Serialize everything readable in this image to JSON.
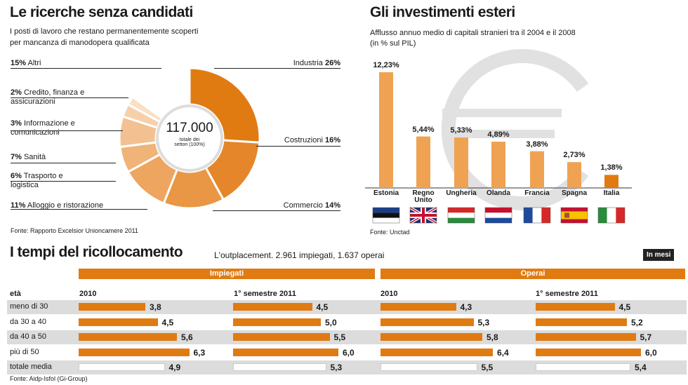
{
  "left_panel": {
    "title": "Le ricerche senza candidati",
    "subtitle_1": "I posti di lavoro che restano permanentemente scoperti",
    "subtitle_2": "per mancanza di manodopera qualificata",
    "center_value": "117.000",
    "center_caption_1": "totale dei",
    "center_caption_2": "settori (100%)",
    "source": "Fonte: Rapporto Excelsior Unioncamere 2011"
  },
  "right_panel": {
    "title": "Gli investimenti esteri",
    "subtitle_1": "Afflusso annuo medio di capitali stranieri tra il 2004 e il 2008",
    "subtitle_2": "(in % sul PIL)",
    "source": "Fonte: Unctad"
  },
  "bottom_panel": {
    "title": "I tempi del ricollocamento",
    "subtitle": "L'outplacement. 2.961 impiegati, 1.637 operai",
    "unit_badge": "In mesi",
    "group_1": "Impiegati",
    "group_2": "Operai",
    "age_header": "età",
    "col_headers": [
      "2010",
      "1° semestre 2011",
      "2010",
      "1° semestre 2011"
    ],
    "source": "Fonte: Aidp-Isfol (Gi-Group)"
  },
  "chart_data": [
    {
      "type": "pie",
      "title": "Le ricerche senza candidati",
      "total": "117.000",
      "slices": [
        {
          "label": "Industria",
          "pct_label": "26%",
          "value": 26,
          "color": "#e07b12"
        },
        {
          "label": "Costruzioni",
          "pct_label": "16%",
          "value": 16,
          "color": "#e5862a"
        },
        {
          "label": "Commercio",
          "pct_label": "14%",
          "value": 14,
          "color": "#e99645"
        },
        {
          "label": "Alloggio e ristorazione",
          "pct_label": "11%",
          "value": 11,
          "color": "#eda55f"
        },
        {
          "label": "Trasporto e logistica",
          "pct_label": "6%",
          "value": 6,
          "color": "#f0b378"
        },
        {
          "label": "Sanità",
          "pct_label": "7%",
          "value": 7,
          "color": "#f3c191"
        },
        {
          "label": "Informazione e comunicazioni",
          "pct_label": "3%",
          "value": 3,
          "color": "#f6d0ab"
        },
        {
          "label": "Credito, finanza e assicurazioni",
          "pct_label": "2%",
          "value": 2,
          "color": "#f9dfc5"
        },
        {
          "label": "Altri",
          "pct_label": "15%",
          "value": 15,
          "color": "#ffffff"
        }
      ]
    },
    {
      "type": "bar",
      "title": "Gli investimenti esteri",
      "ylabel": "% sul PIL",
      "categories": [
        "Estonia",
        "Regno Unito",
        "Ungheria",
        "Olanda",
        "Francia",
        "Spagna",
        "Italia"
      ],
      "values": [
        12.23,
        5.44,
        5.33,
        4.89,
        3.88,
        2.73,
        1.38
      ],
      "value_labels": [
        "12,23%",
        "5,44%",
        "5,33%",
        "4,89%",
        "3,88%",
        "2,73%",
        "1,38%"
      ],
      "ylim": [
        0,
        13
      ]
    },
    {
      "type": "bar",
      "title": "I tempi del ricollocamento (in mesi)",
      "categories": [
        "meno di 30",
        "da 30 a 40",
        "da 40 a 50",
        "più di 50",
        "totale media"
      ],
      "series": [
        {
          "name": "Impiegati 2010",
          "values": [
            3.8,
            4.5,
            5.6,
            6.3,
            4.9
          ],
          "labels": [
            "3,8",
            "4,5",
            "5,6",
            "6,3",
            "4,9"
          ]
        },
        {
          "name": "Impiegati 1° semestre 2011",
          "values": [
            4.5,
            5.0,
            5.5,
            6.0,
            5.3
          ],
          "labels": [
            "4,5",
            "5,0",
            "5,5",
            "6,0",
            "5,3"
          ]
        },
        {
          "name": "Operai 2010",
          "values": [
            4.3,
            5.3,
            5.8,
            6.4,
            5.5
          ],
          "labels": [
            "4,3",
            "5,3",
            "5,8",
            "6,4",
            "5,5"
          ]
        },
        {
          "name": "Operai 1° semestre 2011",
          "values": [
            4.5,
            5.2,
            5.7,
            6.0,
            5.4
          ],
          "labels": [
            "4,5",
            "5,2",
            "5,7",
            "6,0",
            "5,4"
          ]
        }
      ]
    }
  ]
}
